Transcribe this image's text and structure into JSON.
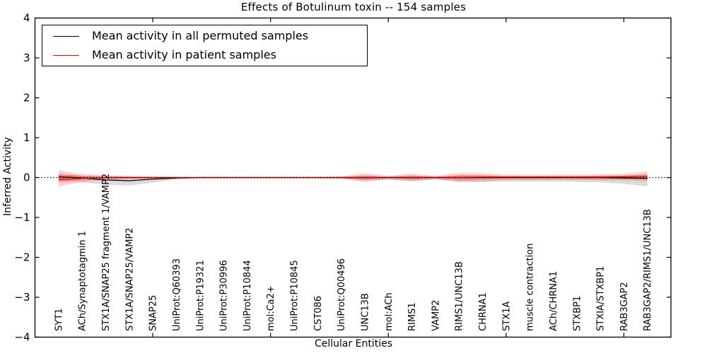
{
  "chart": {
    "title": "Effects of Botulinum toxin -- 154 samples",
    "xlabel": "Cellular Entities",
    "ylabel": "Inferred Activity"
  },
  "chart_data": {
    "type": "line",
    "title": "Effects of Botulinum toxin -- 154 samples",
    "xlabel": "Cellular Entities",
    "ylabel": "Inferred Activity",
    "ylim": [
      -4,
      4
    ],
    "xlim": [
      0,
      27
    ],
    "yticks": [
      4,
      3,
      2,
      1,
      0,
      -1,
      -2,
      -3,
      -4
    ],
    "ytick_labels": [
      "4",
      "3",
      "2",
      "1",
      "0",
      "−1",
      "−2",
      "−3",
      "−4"
    ],
    "xticks": [
      5,
      10,
      15,
      20,
      25
    ],
    "grid": false,
    "legend_position": "upper left",
    "zero_line": {
      "value": 0,
      "style": "dotted",
      "color": "#000000"
    },
    "categories": [
      "SYT1",
      "ACh/Synaptotagmin 1",
      "STX1A/SNAP25 fragment 1/VAMP2",
      "STX1A/SNAP25/VAMP2",
      "SNAP25",
      "UniProt:Q60393",
      "UniProt:P19321",
      "UniProt:P30996",
      "UniProt:P10844",
      "mol:Ca2+",
      "UniProt:P10845",
      "CST086",
      "UniProt:Q00496",
      "UNC13B",
      "mol:ACh",
      "RIMS1",
      "VAMP2",
      "RIMS1/UNC13B",
      "CHRNA1",
      "STX1A",
      "muscle contraction",
      "ACh/CHRNA1",
      "STXBP1",
      "STXIA/STXBP1",
      "RAB3GAP2",
      "RAB3GAP2/RIMS1/UNC13B"
    ],
    "series": [
      {
        "name": "Mean activity in all permuted samples",
        "color": "#000000",
        "band_color": "#000000",
        "band_opacity": 0.14,
        "mean": [
          0.02,
          -0.01,
          -0.06,
          -0.08,
          -0.04,
          -0.01,
          0,
          0,
          0,
          0,
          0,
          0,
          0,
          0,
          0,
          0,
          0,
          0,
          0,
          0,
          0,
          0,
          0,
          0,
          -0.01,
          -0.02
        ],
        "band_upper": [
          0.08,
          0.05,
          0.03,
          0.02,
          0.02,
          0.01,
          0.01,
          0.01,
          0.01,
          0.01,
          0.01,
          0.01,
          0.01,
          0.03,
          0.02,
          0.04,
          0.02,
          0.05,
          0.05,
          0.04,
          0.04,
          0.04,
          0.04,
          0.05,
          0.06,
          0.08
        ],
        "band_lower": [
          -0.08,
          -0.12,
          -0.18,
          -0.2,
          -0.13,
          -0.05,
          -0.02,
          -0.02,
          -0.02,
          -0.02,
          -0.02,
          -0.02,
          -0.03,
          -0.07,
          -0.05,
          -0.08,
          -0.05,
          -0.1,
          -0.12,
          -0.1,
          -0.1,
          -0.1,
          -0.11,
          -0.12,
          -0.16,
          -0.22
        ]
      },
      {
        "name": "Mean activity in patient samples",
        "color": "#ff0000",
        "band_color": "#ff0000",
        "band_opacity": 0.18,
        "inner_band_opacity": 0.28,
        "mean": [
          -0.05,
          -0.02,
          0,
          0,
          0,
          0,
          0,
          0,
          0,
          0,
          0,
          0,
          0,
          0,
          0,
          0,
          0,
          0,
          0.01,
          0.01,
          0.01,
          0.01,
          0.01,
          0.01,
          0.02,
          0.02
        ],
        "band_upper": [
          0.18,
          0.09,
          0.06,
          0.04,
          0.03,
          0.02,
          0.02,
          0.02,
          0.02,
          0.02,
          0.02,
          0.02,
          0.03,
          0.11,
          0.04,
          0.1,
          0.04,
          0.12,
          0.11,
          0.07,
          0.07,
          0.07,
          0.07,
          0.08,
          0.09,
          0.16
        ],
        "band_lower": [
          -0.22,
          -0.11,
          -0.06,
          -0.04,
          -0.03,
          -0.02,
          -0.02,
          -0.02,
          -0.02,
          -0.02,
          -0.02,
          -0.02,
          -0.03,
          -0.11,
          -0.04,
          -0.1,
          -0.04,
          -0.11,
          -0.09,
          -0.06,
          -0.06,
          -0.06,
          -0.06,
          -0.07,
          -0.07,
          -0.1
        ],
        "band_upper_inner": [
          0.09,
          0.045,
          0.03,
          0.02,
          0.015,
          0.01,
          0.01,
          0.01,
          0.01,
          0.01,
          0.01,
          0.01,
          0.015,
          0.055,
          0.02,
          0.05,
          0.02,
          0.06,
          0.055,
          0.035,
          0.035,
          0.035,
          0.035,
          0.04,
          0.045,
          0.08
        ],
        "band_lower_inner": [
          -0.11,
          -0.055,
          -0.03,
          -0.02,
          -0.015,
          -0.01,
          -0.01,
          -0.01,
          -0.01,
          -0.01,
          -0.01,
          -0.01,
          -0.015,
          -0.055,
          -0.02,
          -0.05,
          -0.02,
          -0.055,
          -0.045,
          -0.03,
          -0.03,
          -0.03,
          -0.03,
          -0.035,
          -0.035,
          -0.05
        ]
      }
    ]
  }
}
